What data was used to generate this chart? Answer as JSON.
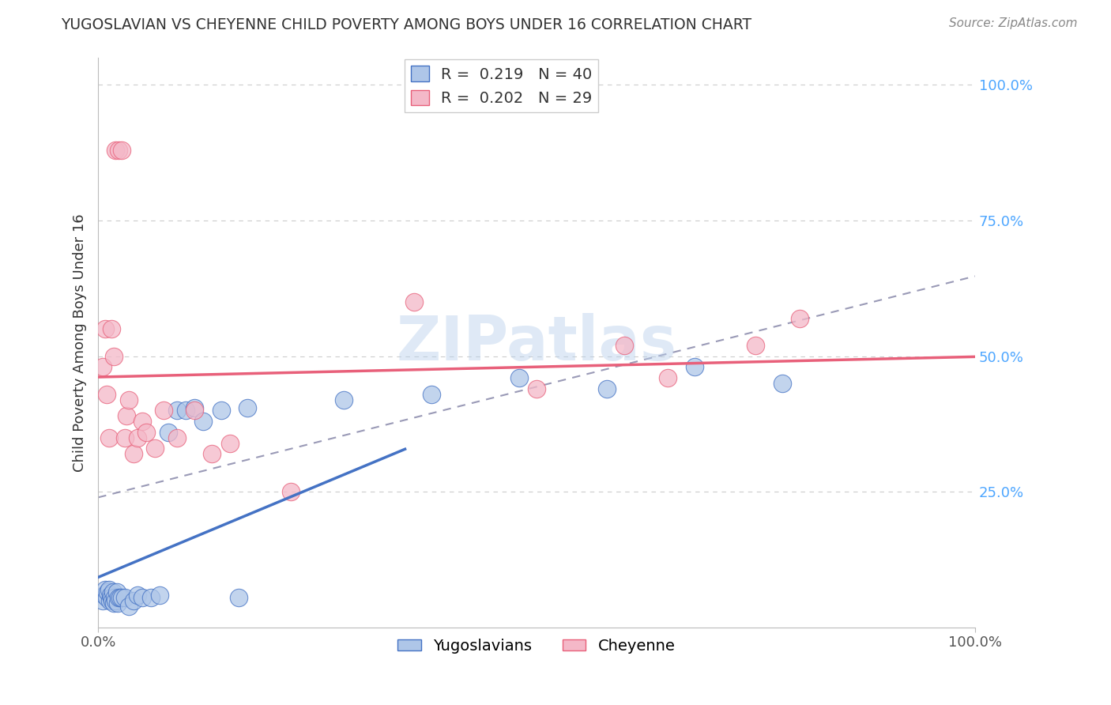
{
  "title": "YUGOSLAVIAN VS CHEYENNE CHILD POVERTY AMONG BOYS UNDER 16 CORRELATION CHART",
  "source": "Source: ZipAtlas.com",
  "ylabel": "Child Poverty Among Boys Under 16",
  "watermark": "ZIPatlas",
  "legend_1_label": "R =  0.219   N = 40",
  "legend_2_label": "R =  0.202   N = 29",
  "legend_1_color": "#aec6e8",
  "legend_2_color": "#f4b8c8",
  "trend_1_color": "#4472c4",
  "trend_2_color": "#e8607a",
  "trend_dash_color": "#8888aa",
  "grid_color": "#cccccc",
  "right_tick_color": "#4da6ff",
  "yug_points": [
    [
      0.5,
      5.0
    ],
    [
      0.7,
      6.0
    ],
    [
      0.8,
      7.0
    ],
    [
      1.0,
      5.5
    ],
    [
      1.1,
      6.5
    ],
    [
      1.2,
      7.0
    ],
    [
      1.3,
      5.0
    ],
    [
      1.4,
      6.0
    ],
    [
      1.5,
      5.5
    ],
    [
      1.6,
      5.0
    ],
    [
      1.7,
      6.5
    ],
    [
      1.8,
      4.5
    ],
    [
      1.9,
      5.5
    ],
    [
      2.0,
      5.0
    ],
    [
      2.1,
      6.5
    ],
    [
      2.2,
      4.5
    ],
    [
      2.3,
      5.5
    ],
    [
      2.5,
      5.5
    ],
    [
      2.7,
      5.5
    ],
    [
      3.0,
      5.5
    ],
    [
      3.5,
      4.0
    ],
    [
      4.0,
      5.0
    ],
    [
      4.5,
      6.0
    ],
    [
      5.0,
      5.5
    ],
    [
      6.0,
      5.5
    ],
    [
      7.0,
      6.0
    ],
    [
      8.0,
      36.0
    ],
    [
      9.0,
      40.0
    ],
    [
      10.0,
      40.0
    ],
    [
      11.0,
      40.5
    ],
    [
      12.0,
      38.0
    ],
    [
      14.0,
      40.0
    ],
    [
      16.0,
      5.5
    ],
    [
      17.0,
      40.5
    ],
    [
      28.0,
      42.0
    ],
    [
      38.0,
      43.0
    ],
    [
      48.0,
      46.0
    ],
    [
      58.0,
      44.0
    ],
    [
      68.0,
      48.0
    ],
    [
      78.0,
      45.0
    ]
  ],
  "chey_points": [
    [
      0.5,
      48.0
    ],
    [
      0.8,
      55.0
    ],
    [
      1.0,
      43.0
    ],
    [
      1.2,
      35.0
    ],
    [
      1.5,
      55.0
    ],
    [
      1.8,
      50.0
    ],
    [
      2.0,
      88.0
    ],
    [
      2.3,
      88.0
    ],
    [
      2.7,
      88.0
    ],
    [
      3.0,
      35.0
    ],
    [
      3.2,
      39.0
    ],
    [
      3.5,
      42.0
    ],
    [
      4.0,
      32.0
    ],
    [
      4.5,
      35.0
    ],
    [
      5.0,
      38.0
    ],
    [
      5.5,
      36.0
    ],
    [
      6.5,
      33.0
    ],
    [
      7.5,
      40.0
    ],
    [
      9.0,
      35.0
    ],
    [
      11.0,
      40.0
    ],
    [
      13.0,
      32.0
    ],
    [
      15.0,
      34.0
    ],
    [
      22.0,
      25.0
    ],
    [
      36.0,
      60.0
    ],
    [
      50.0,
      44.0
    ],
    [
      60.0,
      52.0
    ],
    [
      65.0,
      46.0
    ],
    [
      75.0,
      52.0
    ],
    [
      80.0,
      57.0
    ]
  ],
  "xlim": [
    0.0,
    100.0
  ],
  "ylim": [
    0.0,
    105.0
  ],
  "yticks": [
    25.0,
    50.0,
    75.0,
    100.0
  ],
  "xticks": [
    0.0,
    100.0
  ]
}
